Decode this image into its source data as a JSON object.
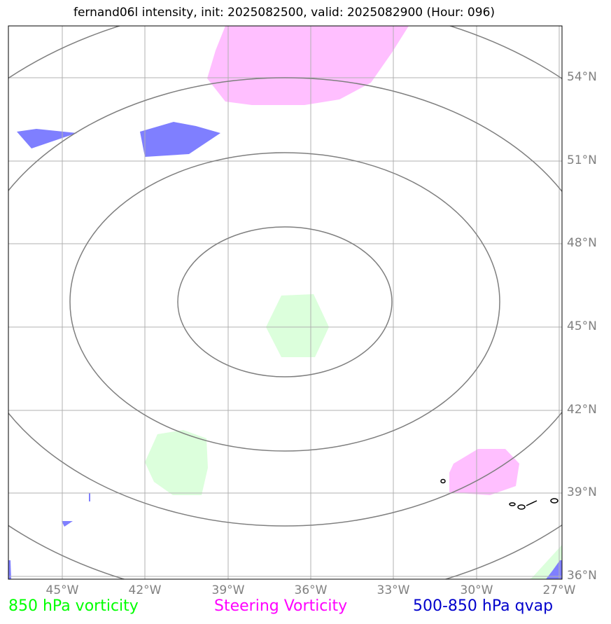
{
  "title": "fernand06l intensity, init: 2025082500, valid: 2025082900 (Hour: 096)",
  "axes": {
    "lat_labels": [
      "54°N",
      "51°N",
      "48°N",
      "45°N",
      "42°N",
      "39°N",
      "36°N"
    ],
    "lon_labels": [
      "45°W",
      "42°W",
      "39°W",
      "36°W",
      "33°W",
      "30°W",
      "27°W"
    ]
  },
  "legend": {
    "vort850": "850 hPa vorticity",
    "steering": "Steering Vorticity",
    "qvap": "500-850 hPa qvap"
  },
  "colors": {
    "vort850_fill": "#dcffdc",
    "steering_fill": "#ffbfff",
    "qvap_fill": "#7f7fff",
    "vort850_text": "#00ff00",
    "steering_text": "#ff00ff",
    "qvap_text": "#0000cc",
    "contour": "#7f7f7f",
    "grid": "#b0b0b0"
  }
}
